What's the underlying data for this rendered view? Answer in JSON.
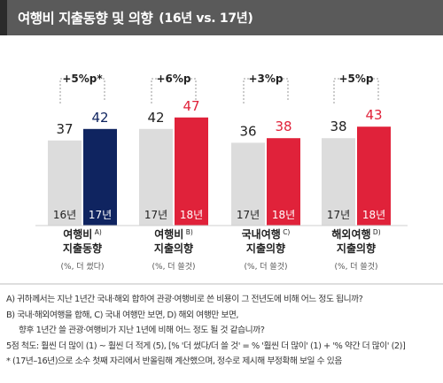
{
  "header": {
    "title": "여행비 지출동향 및 의향",
    "subtitle": "(16년 vs. 17년)"
  },
  "chart_data": {
    "type": "bar",
    "ylim": [
      0,
      100
    ],
    "series": [
      {
        "name": "16년",
        "color": "#dcdcdc",
        "label_color": "#222222"
      },
      {
        "name": "17년",
        "color": "#0f2460",
        "label_color": "#0f2460"
      }
    ],
    "groups": [
      {
        "title": "여행비",
        "title2": "지출동향",
        "sup": "A)",
        "unit": "(%, 더 썼다)",
        "left_label": "16년",
        "right_label": "17년",
        "values": [
          37,
          42
        ],
        "right_color": "#0f2460",
        "diff": "+5%p*"
      },
      {
        "title": "여행비",
        "title2": "지출의향",
        "sup": "B)",
        "unit": "(%, 더 쓸것)",
        "left_label": "17년",
        "right_label": "18년",
        "values": [
          42,
          47
        ],
        "right_color": "#e0223a",
        "diff": "+6%p"
      },
      {
        "title": "국내여행",
        "title2": "지출의향",
        "sup": "C)",
        "unit": "(%, 더 쓸것)",
        "left_label": "17년",
        "right_label": "18년",
        "values": [
          36,
          38
        ],
        "right_color": "#e0223a",
        "diff": "+3%p"
      },
      {
        "title": "해외여행",
        "title2": "지출의향",
        "sup": "D)",
        "unit": "(%, 더 쓸것)",
        "left_label": "17년",
        "right_label": "18년",
        "values": [
          38,
          43
        ],
        "right_color": "#e0223a",
        "diff": "+5%p"
      }
    ]
  },
  "notes": [
    "A) 귀하께서는 지난 1년간 국내·해외 합하여 관광·여행비로 쓴 비용이 그 전년도에 비해 어느 정도 됩니까?",
    "B) 국내·해외여행을 합해, C) 국내 여행만 보면, D) 해외 여행만 보면,",
    "향후 1년간 쓸 관광·여행비가 지난 1년에 비해 어느 정도 될 것 같습니까?",
    "5점 척도: 훨씬 더 많이 (1) ~ 훨씬 더 적게 (5), [% '더 썼다/더 쓸 것' = % '훨씬 더 많이' (1) + '% 약간 더 많이' (2)]",
    "* (17년–16년)으로 소수 첫째 자리에서 반올림해 계산했으며, 정수로 제시해 부정확해 보일 수 있음"
  ]
}
